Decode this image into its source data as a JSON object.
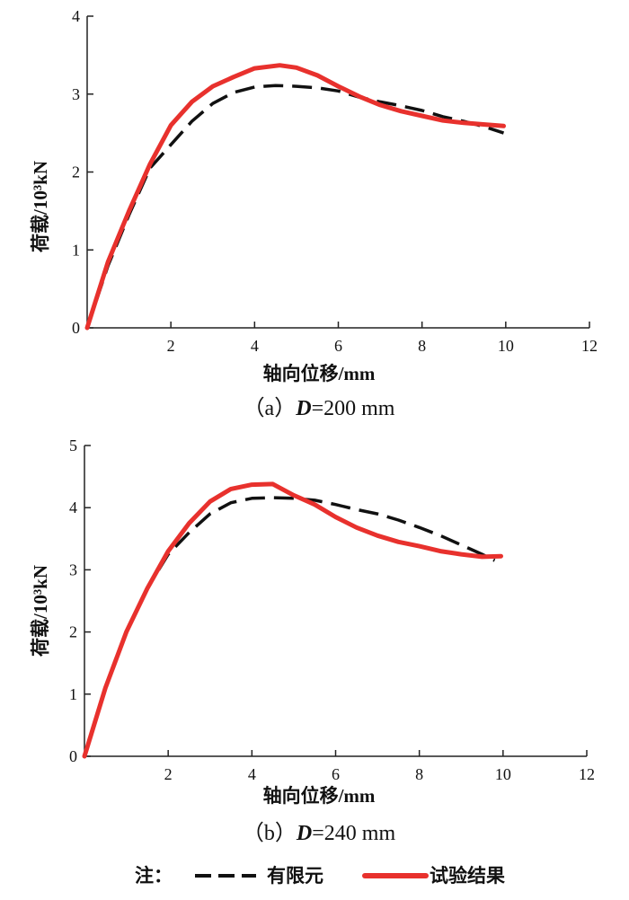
{
  "chart_data": [
    {
      "type": "line",
      "caption": "（a）D=200 mm",
      "caption_prefix": "（a）",
      "caption_var": "D",
      "caption_suffix": "=200 mm",
      "xlabel": "轴向位移/mm",
      "ylabel": "荷载/10³kN",
      "xlim": [
        0,
        12
      ],
      "ylim": [
        0,
        4
      ],
      "xticks": [
        2,
        4,
        6,
        8,
        10,
        12
      ],
      "yticks": [
        0,
        1,
        2,
        3,
        4
      ],
      "grid": false,
      "series": [
        {
          "name": "有限元",
          "style": "dashed",
          "color": "#111111",
          "x": [
            0,
            0.5,
            1,
            1.5,
            2,
            2.5,
            3,
            3.5,
            4,
            4.5,
            5,
            5.5,
            6,
            6.5,
            7,
            7.5,
            8,
            8.5,
            9,
            9.5,
            9.95
          ],
          "y": [
            0,
            0.8,
            1.45,
            2.05,
            2.35,
            2.65,
            2.88,
            3.02,
            3.09,
            3.11,
            3.1,
            3.08,
            3.04,
            2.96,
            2.9,
            2.85,
            2.79,
            2.71,
            2.65,
            2.58,
            2.5
          ]
        },
        {
          "name": "试验结果",
          "style": "solid",
          "color": "#e8312d",
          "x": [
            0,
            0.5,
            1,
            1.5,
            2,
            2.5,
            3,
            3.5,
            4,
            4.6,
            5,
            5.5,
            6,
            6.5,
            7,
            7.5,
            8,
            8.5,
            9,
            9.5,
            9.95
          ],
          "y": [
            0,
            0.85,
            1.5,
            2.1,
            2.6,
            2.9,
            3.1,
            3.22,
            3.33,
            3.37,
            3.34,
            3.24,
            3.1,
            2.97,
            2.86,
            2.78,
            2.72,
            2.66,
            2.63,
            2.61,
            2.59
          ]
        }
      ]
    },
    {
      "type": "line",
      "caption": "（b）D=240 mm",
      "caption_prefix": "（b）",
      "caption_var": "D",
      "caption_suffix": "=240 mm",
      "xlabel": "轴向位移/mm",
      "ylabel": "荷载/10³kN",
      "xlim": [
        0,
        12
      ],
      "ylim": [
        0,
        5
      ],
      "xticks": [
        2,
        4,
        6,
        8,
        10,
        12
      ],
      "yticks": [
        0,
        1,
        2,
        3,
        4,
        5
      ],
      "grid": false,
      "series": [
        {
          "name": "有限元",
          "style": "dashed",
          "color": "#111111",
          "x": [
            0,
            0.5,
            1,
            1.5,
            2,
            2.5,
            3,
            3.5,
            4,
            4.5,
            5,
            5.5,
            6,
            6.5,
            7,
            7.5,
            8,
            8.5,
            9,
            9.5,
            9.8
          ],
          "y": [
            0,
            1.1,
            2.0,
            2.7,
            3.25,
            3.6,
            3.9,
            4.08,
            4.15,
            4.16,
            4.15,
            4.12,
            4.05,
            3.97,
            3.9,
            3.8,
            3.68,
            3.55,
            3.4,
            3.25,
            3.15
          ]
        },
        {
          "name": "试验结果",
          "style": "solid",
          "color": "#e8312d",
          "x": [
            0,
            0.5,
            1,
            1.5,
            2,
            2.5,
            3,
            3.5,
            4,
            4.5,
            5,
            5.5,
            6,
            6.5,
            7,
            7.5,
            8,
            8.5,
            9,
            9.5,
            9.95
          ],
          "y": [
            0,
            1.1,
            2.0,
            2.7,
            3.3,
            3.75,
            4.1,
            4.3,
            4.37,
            4.38,
            4.2,
            4.05,
            3.85,
            3.68,
            3.55,
            3.45,
            3.38,
            3.3,
            3.25,
            3.21,
            3.22
          ]
        }
      ]
    }
  ],
  "legend": {
    "note": "注：",
    "items": [
      {
        "label": "有限元",
        "style": "dashed",
        "color": "#111111"
      },
      {
        "label": "试验结果",
        "style": "solid",
        "color": "#e8312d"
      }
    ]
  }
}
